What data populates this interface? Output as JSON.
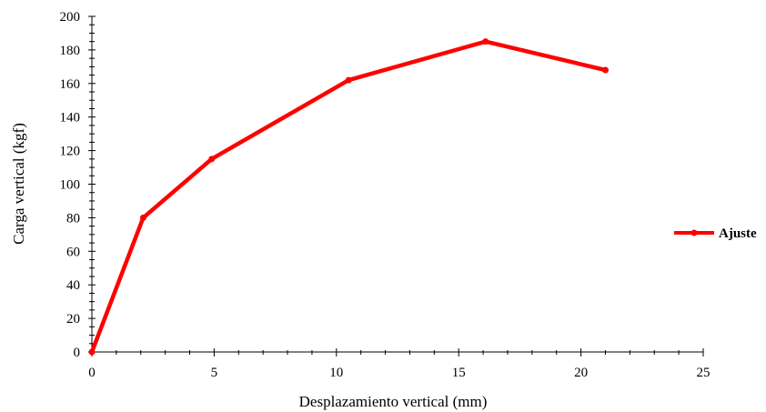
{
  "chart_data": {
    "type": "line",
    "title": "",
    "xlabel": "Desplazamiento vertical (mm)",
    "ylabel": "Carga vertical (kgf)",
    "xlim": [
      0,
      25
    ],
    "ylim": [
      0,
      200
    ],
    "x_ticks": [
      0,
      5,
      10,
      15,
      20,
      25
    ],
    "y_ticks": [
      0,
      20,
      40,
      60,
      80,
      100,
      120,
      140,
      160,
      180,
      200
    ],
    "grid": false,
    "legend_position": "right",
    "series": [
      {
        "name": "Ajuste",
        "color": "#ff0000",
        "x": [
          0,
          2.1,
          4.9,
          10.5,
          16.1,
          21.0
        ],
        "y": [
          0,
          80,
          115,
          162,
          185,
          168
        ]
      }
    ]
  }
}
